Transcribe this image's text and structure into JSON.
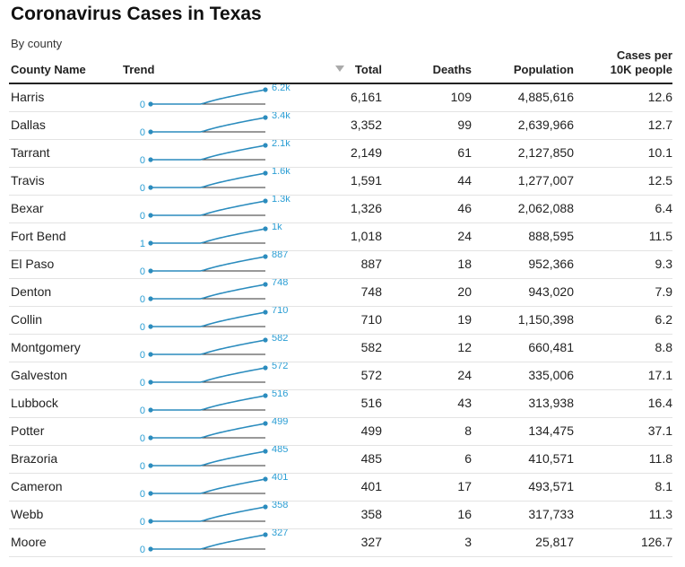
{
  "title": "Coronavirus Cases in Texas",
  "subtitle": "By county",
  "headers": {
    "county": "County Name",
    "trend": "Trend",
    "total": "Total",
    "deaths": "Deaths",
    "population": "Population",
    "cases_per_line1": "Cases per",
    "cases_per_line2": "10K people"
  },
  "colors": {
    "sparkline": "#2b8cbe",
    "sparkline_label": "#2b9ed4",
    "baseline": "#333333"
  },
  "chart_data": {
    "type": "table",
    "sort": "Total descending",
    "columns": [
      "County Name",
      "Trend",
      "Total",
      "Deaths",
      "Population",
      "Cases per 10K people"
    ],
    "rows": [
      {
        "county": "Harris",
        "trend_start": "0",
        "trend_end": "6.2k",
        "start_value": 0,
        "total": "6,161",
        "deaths": "109",
        "population": "4,885,616",
        "cases_per_10k": "12.6"
      },
      {
        "county": "Dallas",
        "trend_start": "0",
        "trend_end": "3.4k",
        "start_value": 0,
        "total": "3,352",
        "deaths": "99",
        "population": "2,639,966",
        "cases_per_10k": "12.7"
      },
      {
        "county": "Tarrant",
        "trend_start": "0",
        "trend_end": "2.1k",
        "start_value": 0,
        "total": "2,149",
        "deaths": "61",
        "population": "2,127,850",
        "cases_per_10k": "10.1"
      },
      {
        "county": "Travis",
        "trend_start": "0",
        "trend_end": "1.6k",
        "start_value": 0,
        "total": "1,591",
        "deaths": "44",
        "population": "1,277,007",
        "cases_per_10k": "12.5"
      },
      {
        "county": "Bexar",
        "trend_start": "0",
        "trend_end": "1.3k",
        "start_value": 0,
        "total": "1,326",
        "deaths": "46",
        "population": "2,062,088",
        "cases_per_10k": "6.4"
      },
      {
        "county": "Fort Bend",
        "trend_start": "1",
        "trend_end": "1k",
        "start_value": 1,
        "total": "1,018",
        "deaths": "24",
        "population": "888,595",
        "cases_per_10k": "11.5"
      },
      {
        "county": "El Paso",
        "trend_start": "0",
        "trend_end": "887",
        "start_value": 0,
        "total": "887",
        "deaths": "18",
        "population": "952,366",
        "cases_per_10k": "9.3"
      },
      {
        "county": "Denton",
        "trend_start": "0",
        "trend_end": "748",
        "start_value": 0,
        "total": "748",
        "deaths": "20",
        "population": "943,020",
        "cases_per_10k": "7.9"
      },
      {
        "county": "Collin",
        "trend_start": "0",
        "trend_end": "710",
        "start_value": 0,
        "total": "710",
        "deaths": "19",
        "population": "1,150,398",
        "cases_per_10k": "6.2"
      },
      {
        "county": "Montgomery",
        "trend_start": "0",
        "trend_end": "582",
        "start_value": 0,
        "total": "582",
        "deaths": "12",
        "population": "660,481",
        "cases_per_10k": "8.8"
      },
      {
        "county": "Galveston",
        "trend_start": "0",
        "trend_end": "572",
        "start_value": 0,
        "total": "572",
        "deaths": "24",
        "population": "335,006",
        "cases_per_10k": "17.1"
      },
      {
        "county": "Lubbock",
        "trend_start": "0",
        "trend_end": "516",
        "start_value": 0,
        "total": "516",
        "deaths": "43",
        "population": "313,938",
        "cases_per_10k": "16.4"
      },
      {
        "county": "Potter",
        "trend_start": "0",
        "trend_end": "499",
        "start_value": 0,
        "total": "499",
        "deaths": "8",
        "population": "134,475",
        "cases_per_10k": "37.1"
      },
      {
        "county": "Brazoria",
        "trend_start": "0",
        "trend_end": "485",
        "start_value": 0,
        "total": "485",
        "deaths": "6",
        "population": "410,571",
        "cases_per_10k": "11.8"
      },
      {
        "county": "Cameron",
        "trend_start": "0",
        "trend_end": "401",
        "start_value": 0,
        "total": "401",
        "deaths": "17",
        "population": "493,571",
        "cases_per_10k": "8.1"
      },
      {
        "county": "Webb",
        "trend_start": "0",
        "trend_end": "358",
        "start_value": 0,
        "total": "358",
        "deaths": "16",
        "population": "317,733",
        "cases_per_10k": "11.3"
      },
      {
        "county": "Moore",
        "trend_start": "0",
        "trend_end": "327",
        "start_value": 0,
        "total": "327",
        "deaths": "3",
        "population": "25,817",
        "cases_per_10k": "126.7"
      }
    ]
  }
}
